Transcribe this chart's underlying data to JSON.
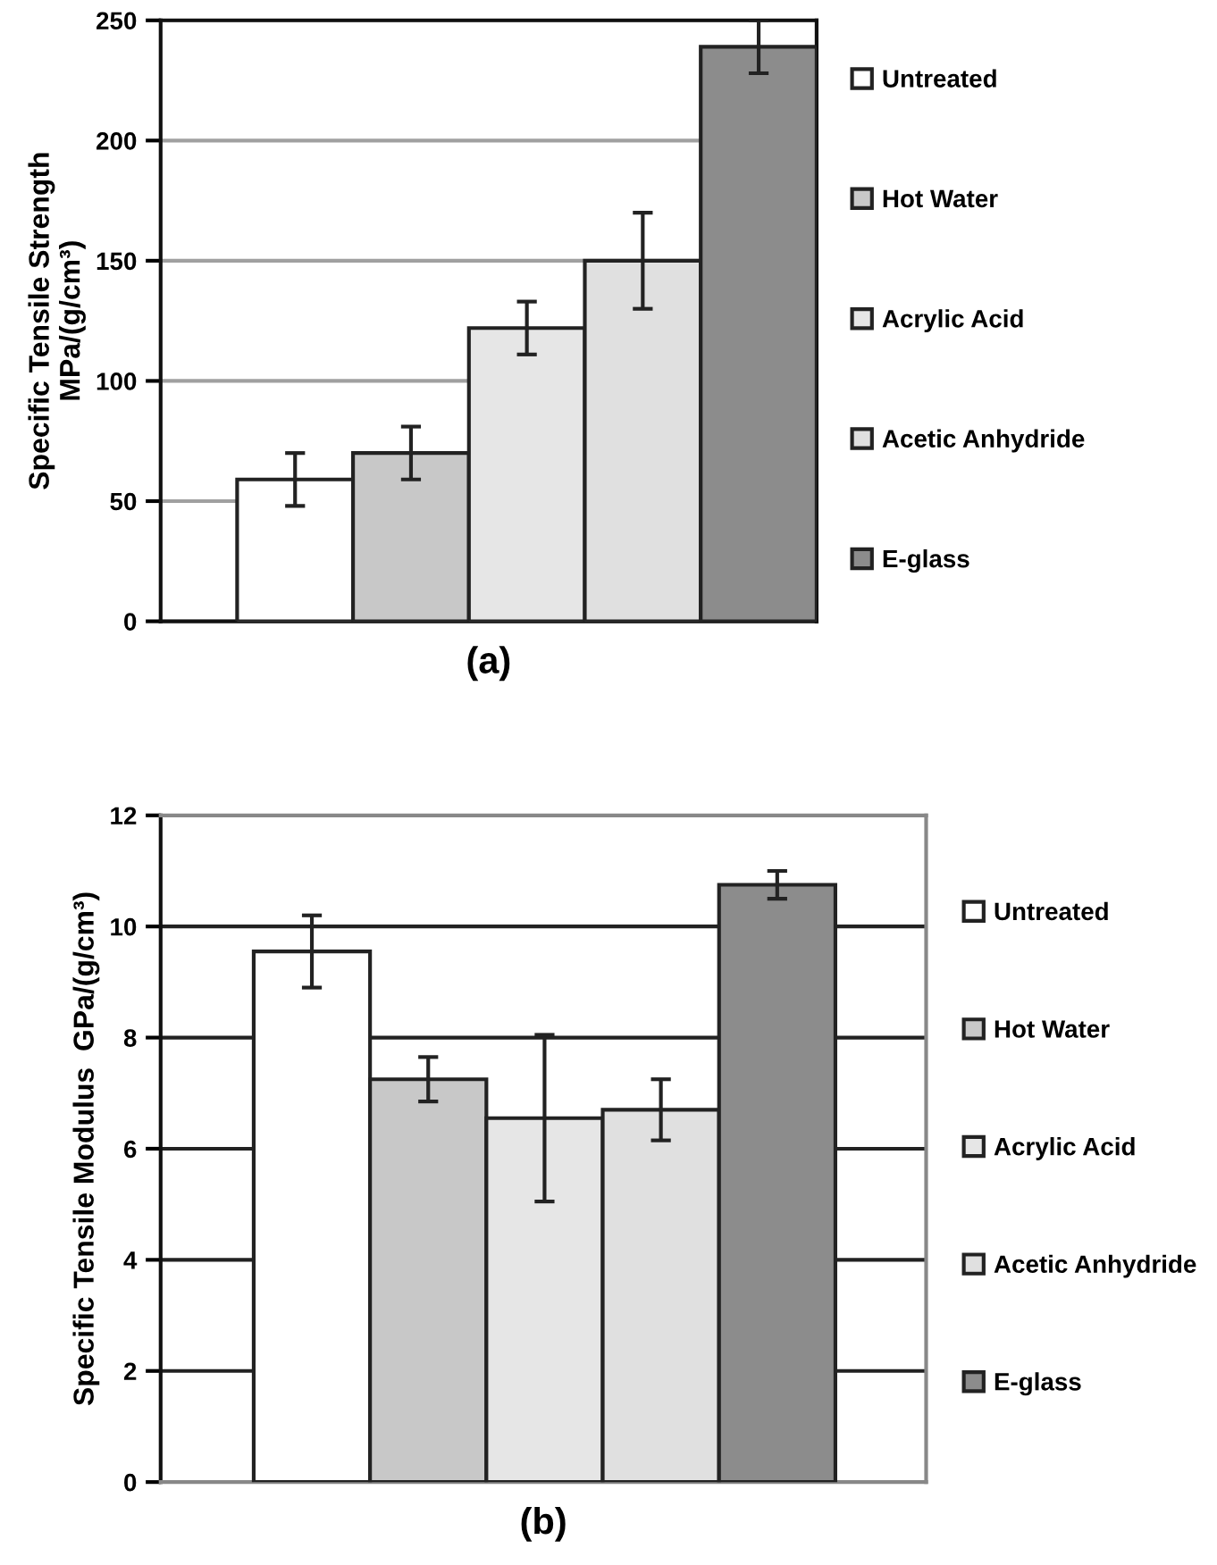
{
  "chart_data": [
    {
      "type": "bar",
      "xlabel": "(a)",
      "ylabel": "Specific Tensile Strength\nMPa/(g/cm³)",
      "categories": [
        null
      ],
      "ylim": [
        0,
        250
      ],
      "yticks": [
        0,
        50,
        100,
        150,
        200,
        250
      ],
      "grid": "y",
      "legend": "right",
      "tick_labels": "y",
      "series": [
        {
          "name": "Untreated",
          "color": "#ffffff",
          "values": [
            59
          ],
          "errors": [
            11
          ]
        },
        {
          "name": "Hot Water",
          "color": "#c8c8c8",
          "values": [
            70
          ],
          "errors": [
            11
          ]
        },
        {
          "name": "Acrylic Acid",
          "color": "#e6e6e6",
          "values": [
            122
          ],
          "errors": [
            11
          ]
        },
        {
          "name": "Acetic Anhydride",
          "color": "#e0e0e0",
          "values": [
            150
          ],
          "errors": [
            20
          ]
        },
        {
          "name": "E-glass",
          "color": "#8c8c8c",
          "values": [
            239
          ],
          "errors": [
            11
          ]
        }
      ]
    },
    {
      "type": "bar",
      "xlabel": "(b)",
      "ylabel": "Specific Tensile Modulus  GPa/(g/cm³)",
      "categories": [
        null
      ],
      "ylim": [
        0,
        12
      ],
      "yticks": [
        0,
        2,
        4,
        6,
        8,
        10,
        12
      ],
      "grid": "y",
      "legend": "right",
      "tick_labels": "y",
      "series": [
        {
          "name": "Untreated",
          "color": "#ffffff",
          "values": [
            9.55
          ],
          "errors": [
            0.65
          ]
        },
        {
          "name": "Hot Water",
          "color": "#c8c8c8",
          "values": [
            7.25
          ],
          "errors": [
            0.4
          ]
        },
        {
          "name": "Acrylic Acid",
          "color": "#e6e6e6",
          "values": [
            6.55
          ],
          "errors": [
            1.5
          ]
        },
        {
          "name": "Acetic Anhydride",
          "color": "#e0e0e0",
          "values": [
            6.7
          ],
          "errors": [
            0.55
          ]
        },
        {
          "name": "E-glass",
          "color": "#8c8c8c",
          "values": [
            10.75
          ],
          "errors": [
            0.25
          ]
        }
      ]
    }
  ]
}
